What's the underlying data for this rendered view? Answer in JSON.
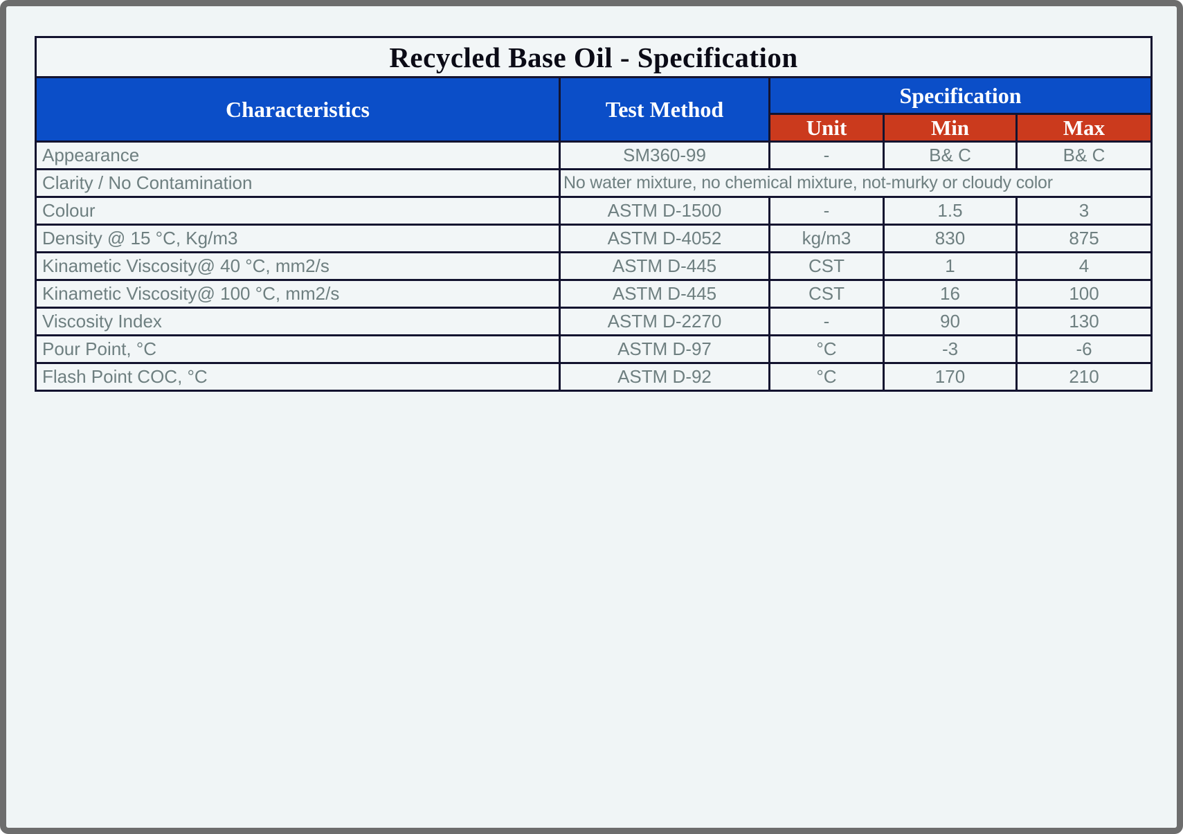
{
  "title": "Recycled Base Oil - Specification",
  "colors": {
    "header_blue": "#0b4ec8",
    "header_red": "#cb3a1d",
    "body_text": "#6e7f80",
    "border": "#13132f",
    "page_background": "#f0f5f6",
    "frame_gray": "#6d6d6d"
  },
  "table": {
    "headers": {
      "characteristics": "Characteristics",
      "test_method": "Test Method",
      "specification": "Specification",
      "unit": "Unit",
      "min": "Min",
      "max": "Max"
    },
    "rows": [
      {
        "characteristic": "Appearance",
        "test_method": "SM360-99",
        "unit": "-",
        "min": "B& C",
        "max": "B& C"
      },
      {
        "characteristic": "Clarity / No Contamination",
        "note": "No water mixture, no chemical mixture, not-murky or cloudy color"
      },
      {
        "characteristic": "Colour",
        "test_method": "ASTM D-1500",
        "unit": "-",
        "min": "1.5",
        "max": "3"
      },
      {
        "characteristic": "Density @ 15 °C, Kg/m3",
        "test_method": "ASTM D-4052",
        "unit": "kg/m3",
        "min": "830",
        "max": "875"
      },
      {
        "characteristic": "Kinametic Viscosity@ 40 °C, mm2/s",
        "test_method": "ASTM D-445",
        "unit": "CST",
        "min": "1",
        "max": "4"
      },
      {
        "characteristic": "Kinametic Viscosity@ 100 °C, mm2/s",
        "test_method": "ASTM D-445",
        "unit": "CST",
        "min": "16",
        "max": "100"
      },
      {
        "characteristic": "Viscosity Index",
        "test_method": "ASTM D-2270",
        "unit": "-",
        "min": "90",
        "max": "130"
      },
      {
        "characteristic": "Pour Point, °C",
        "test_method": "ASTM D-97",
        "unit": "°C",
        "min": "-3",
        "max": "-6"
      },
      {
        "characteristic": "Flash Point COC, °C",
        "test_method": "ASTM D-92",
        "unit": "°C",
        "min": "170",
        "max": "210"
      }
    ]
  }
}
